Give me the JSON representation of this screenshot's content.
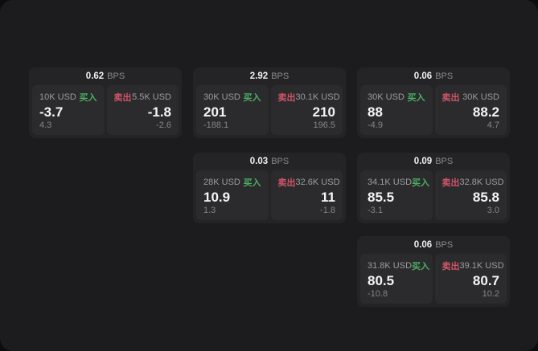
{
  "labels": {
    "bps_unit": "BPS",
    "buy": "买入",
    "sell": "卖出"
  },
  "colors": {
    "buy_green": "#4bae63",
    "sell_red": "#cf5568",
    "panel_bg": "#1c1c1e",
    "card_bg": "#242426",
    "tile_bg": "#2b2b2d"
  },
  "cards": [
    {
      "bps": "0.62",
      "buy": {
        "amount": "10K USD",
        "price": "-3.7",
        "delta": "4.3"
      },
      "sell": {
        "amount": "5.5K USD",
        "price": "-1.8",
        "delta": "-2.6"
      }
    },
    {
      "bps": "2.92",
      "buy": {
        "amount": "30K USD",
        "price": "201",
        "delta": "-188.1"
      },
      "sell": {
        "amount": "30.1K USD",
        "price": "210",
        "delta": "196.5"
      }
    },
    {
      "bps": "0.06",
      "buy": {
        "amount": "30K USD",
        "price": "88",
        "delta": "-4.9"
      },
      "sell": {
        "amount": "30K USD",
        "price": "88.2",
        "delta": "4.7"
      }
    },
    {
      "bps": "0.03",
      "buy": {
        "amount": "28K USD",
        "price": "10.9",
        "delta": "1.3"
      },
      "sell": {
        "amount": "32.6K USD",
        "price": "11",
        "delta": "-1.8"
      }
    },
    {
      "bps": "0.09",
      "buy": {
        "amount": "34.1K USD",
        "price": "85.5",
        "delta": "-3.1"
      },
      "sell": {
        "amount": "32.8K USD",
        "price": "85.8",
        "delta": "3.0"
      }
    },
    {
      "bps": "0.06",
      "buy": {
        "amount": "31.8K USD",
        "price": "80.5",
        "delta": "-10.8"
      },
      "sell": {
        "amount": "39.1K USD",
        "price": "80.7",
        "delta": "10.2"
      }
    }
  ]
}
